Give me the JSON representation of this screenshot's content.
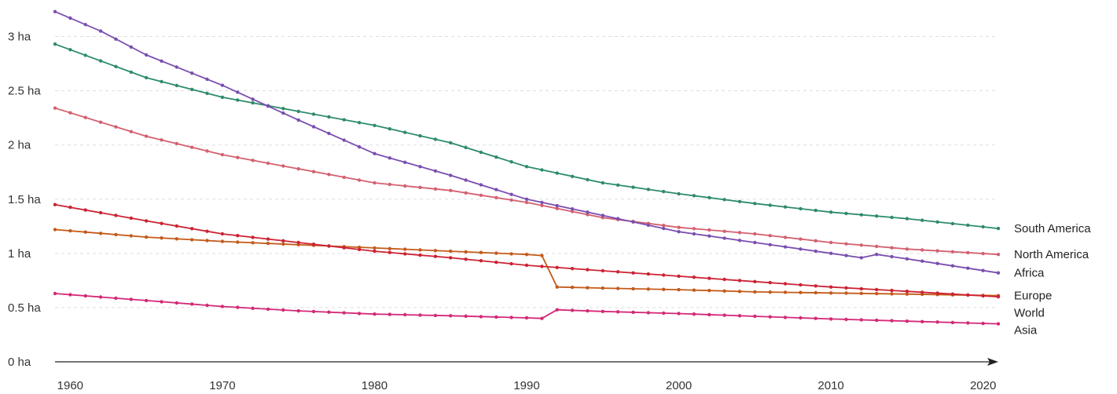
{
  "chart_data": {
    "type": "line",
    "title": "",
    "xlabel": "",
    "ylabel": "",
    "xlim": [
      1959,
      2021
    ],
    "ylim": [
      0,
      3.25
    ],
    "y_ticks": [
      {
        "value": 0,
        "label": "0 ha"
      },
      {
        "value": 0.5,
        "label": "0.5 ha"
      },
      {
        "value": 1,
        "label": "1 ha"
      },
      {
        "value": 1.5,
        "label": "1.5 ha"
      },
      {
        "value": 2,
        "label": "2 ha"
      },
      {
        "value": 2.5,
        "label": "2.5 ha"
      },
      {
        "value": 3,
        "label": "3 ha"
      }
    ],
    "x_ticks": [
      {
        "value": 1960,
        "label": "1960"
      },
      {
        "value": 1970,
        "label": "1970"
      },
      {
        "value": 1980,
        "label": "1980"
      },
      {
        "value": 1990,
        "label": "1990"
      },
      {
        "value": 2000,
        "label": "2000"
      },
      {
        "value": 2010,
        "label": "2010"
      },
      {
        "value": 2020,
        "label": "2020"
      }
    ],
    "grid": true,
    "legend": "inline labels at right end of each line",
    "series": [
      {
        "name": "South America",
        "color": "#2e8b6a",
        "points": [
          [
            1959,
            2.93
          ],
          [
            1965,
            2.62
          ],
          [
            1970,
            2.44
          ],
          [
            1975,
            2.31
          ],
          [
            1980,
            2.18
          ],
          [
            1985,
            2.02
          ],
          [
            1990,
            1.8
          ],
          [
            1995,
            1.65
          ],
          [
            2000,
            1.55
          ],
          [
            2005,
            1.46
          ],
          [
            2010,
            1.38
          ],
          [
            2015,
            1.32
          ],
          [
            2021,
            1.23
          ]
        ]
      },
      {
        "name": "North America",
        "color": "#d4606f",
        "points": [
          [
            1959,
            2.34
          ],
          [
            1965,
            2.08
          ],
          [
            1970,
            1.91
          ],
          [
            1975,
            1.78
          ],
          [
            1980,
            1.65
          ],
          [
            1985,
            1.58
          ],
          [
            1990,
            1.47
          ],
          [
            1995,
            1.33
          ],
          [
            2000,
            1.24
          ],
          [
            2005,
            1.18
          ],
          [
            2010,
            1.1
          ],
          [
            2015,
            1.04
          ],
          [
            2021,
            0.99
          ]
        ]
      },
      {
        "name": "Africa",
        "color": "#7a4fb0",
        "points": [
          [
            1959,
            3.23
          ],
          [
            1962,
            3.05
          ],
          [
            1965,
            2.83
          ],
          [
            1970,
            2.55
          ],
          [
            1975,
            2.23
          ],
          [
            1980,
            1.92
          ],
          [
            1985,
            1.72
          ],
          [
            1990,
            1.5
          ],
          [
            1991,
            1.47
          ],
          [
            1995,
            1.35
          ],
          [
            2000,
            1.2
          ],
          [
            2005,
            1.1
          ],
          [
            2010,
            1.0
          ],
          [
            2012,
            0.96
          ],
          [
            2013,
            0.99
          ],
          [
            2015,
            0.95
          ],
          [
            2021,
            0.82
          ]
        ]
      },
      {
        "name": "Europe",
        "color": "#c45a1a",
        "points": [
          [
            1959,
            1.22
          ],
          [
            1965,
            1.15
          ],
          [
            1970,
            1.11
          ],
          [
            1975,
            1.08
          ],
          [
            1980,
            1.05
          ],
          [
            1985,
            1.02
          ],
          [
            1990,
            0.99
          ],
          [
            1991,
            0.98
          ],
          [
            1992,
            0.69
          ],
          [
            1995,
            0.68
          ],
          [
            2000,
            0.665
          ],
          [
            2005,
            0.645
          ],
          [
            2010,
            0.635
          ],
          [
            2015,
            0.625
          ],
          [
            2021,
            0.61
          ]
        ]
      },
      {
        "name": "World",
        "color": "#cc2233",
        "points": [
          [
            1959,
            1.45
          ],
          [
            1965,
            1.3
          ],
          [
            1970,
            1.18
          ],
          [
            1975,
            1.1
          ],
          [
            1980,
            1.02
          ],
          [
            1985,
            0.96
          ],
          [
            1990,
            0.89
          ],
          [
            1995,
            0.84
          ],
          [
            2000,
            0.79
          ],
          [
            2005,
            0.74
          ],
          [
            2010,
            0.69
          ],
          [
            2015,
            0.65
          ],
          [
            2021,
            0.6
          ]
        ]
      },
      {
        "name": "Asia",
        "color": "#d42877",
        "points": [
          [
            1959,
            0.63
          ],
          [
            1965,
            0.565
          ],
          [
            1970,
            0.51
          ],
          [
            1975,
            0.47
          ],
          [
            1980,
            0.44
          ],
          [
            1985,
            0.425
          ],
          [
            1990,
            0.405
          ],
          [
            1991,
            0.4
          ],
          [
            1992,
            0.48
          ],
          [
            1995,
            0.465
          ],
          [
            2000,
            0.445
          ],
          [
            2005,
            0.42
          ],
          [
            2010,
            0.395
          ],
          [
            2015,
            0.375
          ],
          [
            2021,
            0.35
          ]
        ]
      }
    ]
  }
}
